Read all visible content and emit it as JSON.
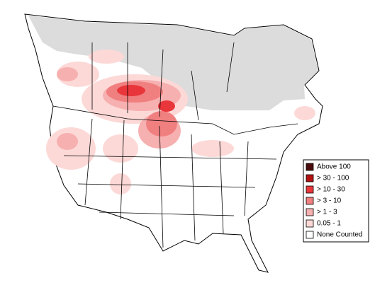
{
  "legend": {
    "items": [
      {
        "label": "Above 100",
        "color": "#4a0c0c"
      },
      {
        "label": "> 30 - 100",
        "color": "#b31212"
      },
      {
        "label": "> 10 - 30",
        "color": "#e8363a"
      },
      {
        "label": "> 3 - 10",
        "color": "#f07f80"
      },
      {
        "label": "> 1 - 3",
        "color": "#f7b0b0"
      },
      {
        "label": "0.05 - 1",
        "color": "#fcd9d7"
      },
      {
        "label": "None Counted",
        "color": "#ffffff"
      }
    ]
  }
}
